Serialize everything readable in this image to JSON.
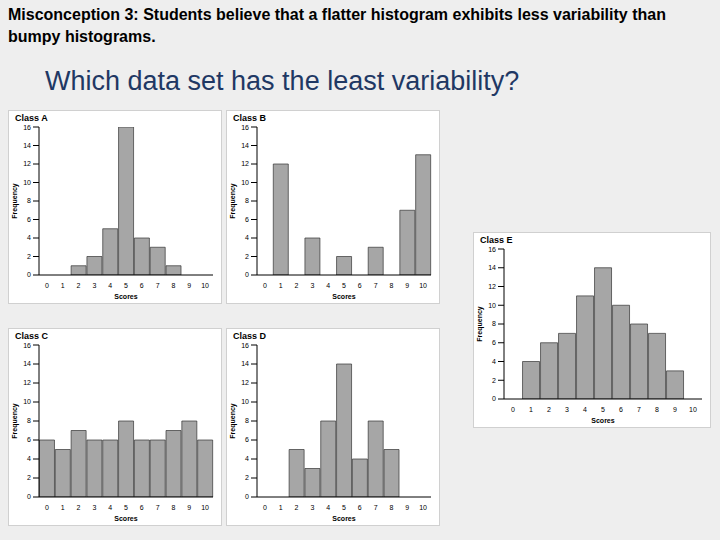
{
  "heading": "Misconception 3: Students believe that a flatter histogram exhibits less variability than bumpy histograms.",
  "question": "Which data set has the least variability?",
  "chart_data": [
    {
      "type": "bar",
      "title": "Class A",
      "x_label": "Scores",
      "y_label": "Frequency",
      "categories": [
        "0",
        "1",
        "2",
        "3",
        "4",
        "5",
        "6",
        "7",
        "8",
        "9",
        "10"
      ],
      "values": [
        0,
        0,
        1,
        2,
        5,
        16,
        4,
        3,
        1,
        0,
        0
      ],
      "color": "#a6a6a6",
      "ylim": [
        0,
        16
      ],
      "yticks": [
        0,
        2,
        4,
        6,
        8,
        10,
        12,
        14,
        16
      ],
      "grid": false
    },
    {
      "type": "bar",
      "title": "Class B",
      "x_label": "Scores",
      "y_label": "Frequency",
      "categories": [
        "0",
        "1",
        "2",
        "3",
        "4",
        "5",
        "6",
        "7",
        "8",
        "9",
        "10"
      ],
      "values": [
        0,
        12,
        0,
        4,
        0,
        2,
        0,
        3,
        0,
        7,
        13
      ],
      "color": "#a6a6a6",
      "ylim": [
        0,
        16
      ],
      "yticks": [
        0,
        2,
        4,
        6,
        8,
        10,
        12,
        14,
        16
      ],
      "grid": false
    },
    {
      "type": "bar",
      "title": "Class C",
      "x_label": "Scores",
      "y_label": "Frequency",
      "categories": [
        "0",
        "1",
        "2",
        "3",
        "4",
        "5",
        "6",
        "7",
        "8",
        "9",
        "10"
      ],
      "values": [
        6,
        5,
        7,
        6,
        6,
        8,
        6,
        6,
        7,
        8,
        6
      ],
      "color": "#a6a6a6",
      "ylim": [
        0,
        16
      ],
      "yticks": [
        0,
        2,
        4,
        6,
        8,
        10,
        12,
        14,
        16
      ],
      "grid": false
    },
    {
      "type": "bar",
      "title": "Class D",
      "x_label": "Scores",
      "y_label": "Frequency",
      "categories": [
        "0",
        "1",
        "2",
        "3",
        "4",
        "5",
        "6",
        "7",
        "8",
        "9",
        "10"
      ],
      "values": [
        0,
        0,
        5,
        3,
        8,
        14,
        4,
        8,
        5,
        0,
        0
      ],
      "color": "#a6a6a6",
      "ylim": [
        0,
        16
      ],
      "yticks": [
        0,
        2,
        4,
        6,
        8,
        10,
        12,
        14,
        16
      ],
      "grid": false
    },
    {
      "type": "bar",
      "title": "Class E",
      "x_label": "Scores",
      "y_label": "Frequency",
      "categories": [
        "0",
        "1",
        "2",
        "3",
        "4",
        "5",
        "6",
        "7",
        "8",
        "9",
        "10"
      ],
      "values": [
        0,
        4,
        6,
        7,
        11,
        14,
        10,
        8,
        7,
        3,
        0
      ],
      "color": "#a6a6a6",
      "ylim": [
        0,
        16
      ],
      "yticks": [
        0,
        2,
        4,
        6,
        8,
        10,
        12,
        14,
        16
      ],
      "grid": false
    }
  ]
}
